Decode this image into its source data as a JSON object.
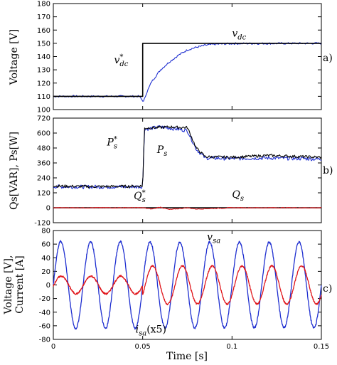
{
  "chart_data": [
    {
      "type": "line",
      "panel_label": "a)",
      "ylabel": "Voltage [V]",
      "ylim": [
        100,
        180
      ],
      "yticks": [
        100,
        110,
        120,
        130,
        140,
        150,
        160,
        170,
        180
      ],
      "xlim": [
        0,
        0.15
      ],
      "grid": false,
      "series": [
        {
          "name": "v*dc",
          "color": "#000000",
          "x": [
            0,
            0.05,
            0.05,
            0.15
          ],
          "y": [
            110,
            110,
            150,
            150
          ]
        },
        {
          "name": "vdc",
          "color": "#1f2fd0",
          "x": [
            0,
            0.048,
            0.0505,
            0.052,
            0.055,
            0.06,
            0.065,
            0.07,
            0.075,
            0.08,
            0.085,
            0.09,
            0.1,
            0.15
          ],
          "y": [
            110,
            110,
            106,
            112,
            121,
            130,
            136,
            141,
            145,
            147,
            148.5,
            149.3,
            149.8,
            150
          ]
        }
      ],
      "annotations": [
        {
          "text": "v",
          "sub": "dc",
          "sup": "",
          "x": 0.1,
          "y": 155
        },
        {
          "text": "v",
          "sub": "dc",
          "sup": "*",
          "x": 0.034,
          "y": 135
        }
      ]
    },
    {
      "type": "line",
      "panel_label": "b)",
      "ylabel": "Qs[VAR], Ps[W]",
      "ylim": [
        -120,
        720
      ],
      "yticks": [
        -120,
        0,
        120,
        240,
        360,
        480,
        600,
        720
      ],
      "xlim": [
        0,
        0.15
      ],
      "grid": false,
      "series": [
        {
          "name": "P*s",
          "color": "#000000",
          "x": [
            0,
            0.02,
            0.04,
            0.05,
            0.051,
            0.06,
            0.065,
            0.07,
            0.075,
            0.08,
            0.085,
            0.1,
            0.12,
            0.14,
            0.15
          ],
          "y": [
            175,
            170,
            172,
            175,
            640,
            645,
            650,
            645,
            645,
            480,
            410,
            405,
            420,
            410,
            405
          ]
        },
        {
          "name": "Ps",
          "color": "#1f2fd0",
          "x": [
            0,
            0.02,
            0.04,
            0.05,
            0.051,
            0.06,
            0.065,
            0.07,
            0.075,
            0.08,
            0.085,
            0.1,
            0.12,
            0.14,
            0.15
          ],
          "y": [
            170,
            168,
            168,
            170,
            630,
            650,
            640,
            630,
            620,
            470,
            400,
            395,
            400,
            395,
            390
          ]
        },
        {
          "name": "Q*s",
          "color": "#000000",
          "x": [
            0,
            0.15
          ],
          "y": [
            0,
            0
          ]
        },
        {
          "name": "Qs",
          "color": "#e0161b",
          "x": [
            0,
            0.05,
            0.055,
            0.06,
            0.065,
            0.075,
            0.08,
            0.1,
            0.15
          ],
          "y": [
            0,
            0,
            -10,
            5,
            -15,
            0,
            -10,
            0,
            0
          ]
        }
      ],
      "annotations": [
        {
          "text": "P",
          "sub": "s",
          "sup": "*",
          "x": 0.03,
          "y": 500
        },
        {
          "text": "P",
          "sub": "s",
          "sup": "",
          "x": 0.058,
          "y": 440
        },
        {
          "text": "Q",
          "sub": "s",
          "sup": "*",
          "x": 0.045,
          "y": 70
        },
        {
          "text": "Q",
          "sub": "s",
          "sup": "",
          "x": 0.1,
          "y": 80
        }
      ]
    },
    {
      "type": "line",
      "panel_label": "c)",
      "ylabel_lines": [
        "Voltage [V],",
        "Current [A]"
      ],
      "ylim": [
        -80,
        80
      ],
      "yticks": [
        -80,
        -60,
        -40,
        -20,
        0,
        20,
        40,
        60,
        80
      ],
      "xlim": [
        0,
        0.15
      ],
      "xticks": [
        0,
        0.05,
        0.1,
        0.15
      ],
      "xlabel": "Time [s]",
      "grid": false,
      "series": [
        {
          "name": "vsa",
          "color": "#1f2fd0",
          "frequency": 60,
          "amplitude": 64,
          "amplitude_after": 63
        },
        {
          "name": "isa(x5)",
          "color": "#e0161b",
          "frequency": 60,
          "amplitude": 13,
          "amplitude_after": 28
        }
      ],
      "annotations": [
        {
          "text": "v",
          "sub": "sa",
          "sup": "",
          "x": 0.086,
          "y": 66
        },
        {
          "text": "i",
          "sub": "sa",
          "suffix": "(x5)",
          "x": 0.046,
          "y": -70
        }
      ]
    }
  ]
}
